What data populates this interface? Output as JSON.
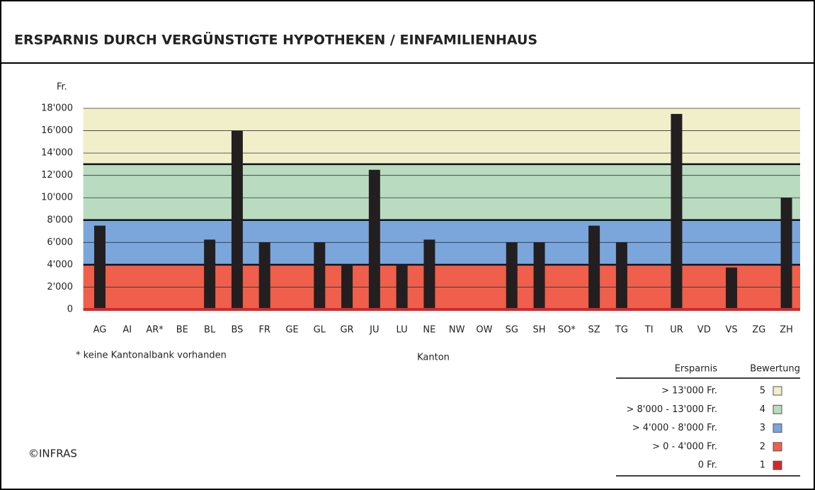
{
  "chart_data": {
    "type": "bar",
    "title": "ERSPARNIS DURCH VERGÜNSTIGTE HYPOTHEKEN / EINFAMILIENHAUS",
    "y_label": "Fr.",
    "x_label": "Kanton",
    "note": "* keine Kantonalbank vorhanden",
    "credit": "©INFRAS",
    "categories": [
      "AG",
      "AI",
      "AR*",
      "BE",
      "BL",
      "BS",
      "FR",
      "GE",
      "GL",
      "GR",
      "JU",
      "LU",
      "NE",
      "NW",
      "OW",
      "SG",
      "SH",
      "SO*",
      "SZ",
      "TG",
      "TI",
      "UR",
      "VD",
      "VS",
      "ZG",
      "ZH"
    ],
    "values": [
      7500,
      0,
      0,
      0,
      6250,
      16000,
      6000,
      0,
      6000,
      4000,
      12500,
      4000,
      6250,
      0,
      0,
      6000,
      6000,
      0,
      7500,
      6000,
      0,
      17500,
      0,
      3750,
      0,
      10000
    ],
    "color": "#231f20",
    "ylim": [
      0,
      18000
    ],
    "yticks": [
      0,
      {
        "value": 2000,
        "label": "2'000"
      },
      {
        "value": 4000,
        "label": "4'000"
      },
      {
        "value": 6000,
        "label": "6'000"
      },
      {
        "value": 8000,
        "label": "8'000"
      },
      {
        "value": 10000,
        "label": "10'000"
      },
      {
        "value": 12000,
        "label": "12'000"
      },
      {
        "value": 14000,
        "label": "14'000"
      },
      {
        "value": 16000,
        "label": "16'000"
      },
      {
        "value": 18000,
        "label": "18'000"
      }
    ],
    "grid": true,
    "bands": [
      {
        "min": 0,
        "max": 4000,
        "color": "#ef5f4b"
      },
      {
        "min": 4000,
        "max": 8000,
        "color": "#7ba6dc"
      },
      {
        "min": 8000,
        "max": 13000,
        "color": "#b9dcc0"
      },
      {
        "min": 13000,
        "max": 18000,
        "color": "#f1efca"
      }
    ],
    "zero_line_color": "#d7262b",
    "legend": {
      "header_label": "Ersparnis",
      "header_rating": "Bewertung",
      "items": [
        {
          "label": "> 13'000 Fr.",
          "rating": 5,
          "color": "#f1efca"
        },
        {
          "label": "> 8'000 - 13'000 Fr.",
          "rating": 4,
          "color": "#b9dcc0"
        },
        {
          "label": "> 4'000 - 8'000 Fr.",
          "rating": 3,
          "color": "#7ba6dc"
        },
        {
          "label": "> 0 - 4'000 Fr.",
          "rating": 2,
          "color": "#ef5f4b"
        },
        {
          "label": "0 Fr.",
          "rating": 1,
          "color": "#d7262b"
        }
      ]
    }
  }
}
